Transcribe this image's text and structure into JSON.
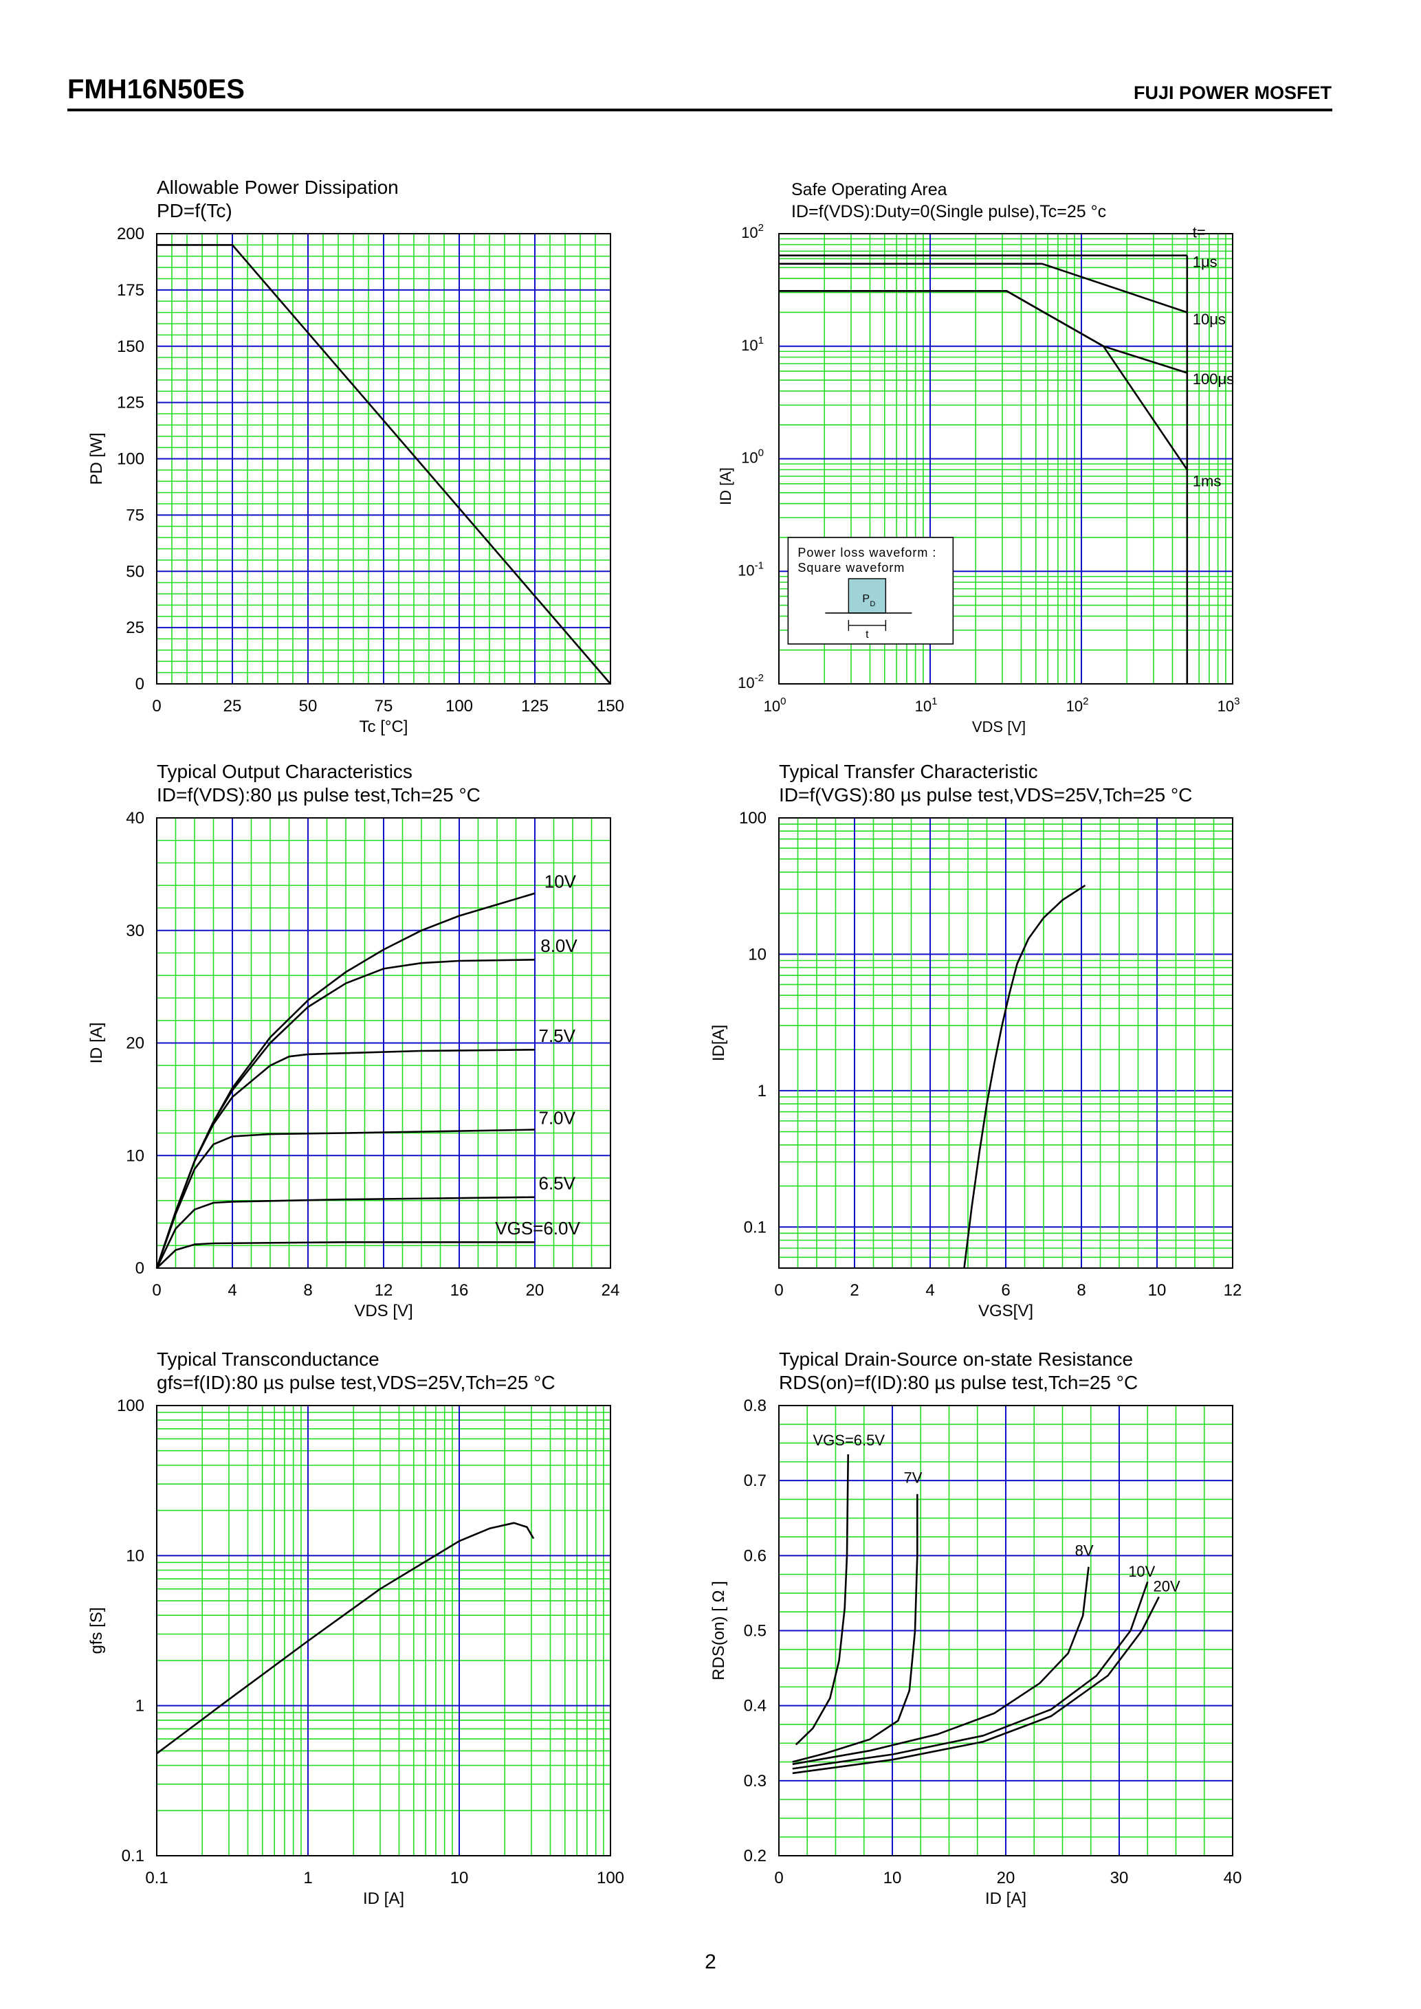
{
  "header": {
    "title": "FMH16N50ES",
    "right": "FUJI POWER MOSFET"
  },
  "page_number": "2",
  "colors": {
    "minor_grid": "#22dd22",
    "major_grid": "#1010c8",
    "curve": "#000000",
    "frame": "#000000"
  },
  "chart_data": [
    {
      "id": "pd",
      "type": "line",
      "title": "Allowable Power Dissipation",
      "subtitle": "PD=f(Tc)",
      "xlabel": "Tc [°C]",
      "ylabel": "PD [W]",
      "xscale": "linear",
      "yscale": "linear",
      "xlim": [
        0,
        150
      ],
      "ylim": [
        0,
        200
      ],
      "xticks": [
        0,
        25,
        50,
        75,
        100,
        125,
        150
      ],
      "xtick_labels": [
        "0",
        "25",
        "50",
        "75",
        "100",
        "125",
        "150"
      ],
      "yticks": [
        0,
        25,
        50,
        75,
        100,
        125,
        150,
        175,
        200
      ],
      "ytick_labels": [
        "0",
        "25",
        "50",
        "75",
        "100",
        "125",
        "150",
        "175",
        "200"
      ],
      "grid": true,
      "series": [
        {
          "points": [
            [
              0,
              195
            ],
            [
              25,
              195
            ],
            [
              150,
              0
            ]
          ]
        }
      ]
    },
    {
      "id": "soa",
      "type": "line",
      "title": "Safe Operating Area",
      "subtitle": "ID=f(VDS):Duty=0(Single pulse),Tc=25 °c",
      "xlabel": "VDS [V]",
      "ylabel": "ID [A]",
      "xscale": "log",
      "yscale": "log",
      "xlim": [
        1,
        1000
      ],
      "ylim": [
        0.01,
        100
      ],
      "xtick_base": [
        "10",
        "10",
        "10",
        "10"
      ],
      "xtick_exp": [
        "0",
        "1",
        "2",
        "3"
      ],
      "ytick_base": [
        "10",
        "10",
        "10",
        "10",
        "10"
      ],
      "ytick_exp": [
        "-2",
        "-1",
        "0",
        "1",
        "2"
      ],
      "grid": true,
      "annotations": [
        "t=",
        "1μs",
        "10μs",
        "100μs",
        "1ms"
      ],
      "inset": {
        "line1": "Power loss waveform :",
        "line2": "Square waveform",
        "pulse_label": "PD",
        "width_label": "t"
      },
      "series": [
        {
          "name": "1μs",
          "points": [
            [
              1,
              64
            ],
            [
              160,
              64
            ],
            [
              500,
              64
            ]
          ]
        },
        {
          "name": "10μs",
          "points": [
            [
              1,
              54
            ],
            [
              55,
              54
            ],
            [
              500,
              20
            ]
          ]
        },
        {
          "name": "100μs",
          "points": [
            [
              1,
              31
            ],
            [
              32,
              31
            ],
            [
              140,
              10
            ],
            [
              500,
              5.8
            ]
          ]
        },
        {
          "name": "1ms",
          "points": [
            [
              1,
              31
            ],
            [
              32,
              31
            ],
            [
              140,
              10
            ],
            [
              500,
              0.8
            ]
          ]
        },
        {
          "name": "VDS limit",
          "points": [
            [
              500,
              0.01
            ],
            [
              500,
              64
            ]
          ]
        }
      ]
    },
    {
      "id": "output",
      "type": "line",
      "title": "Typical Output Characteristics",
      "subtitle": "ID=f(VDS):80 µs pulse test,Tch=25 °C",
      "xlabel": "VDS [V]",
      "ylabel": "ID [A]",
      "xscale": "linear",
      "yscale": "linear",
      "xlim": [
        0,
        24
      ],
      "ylim": [
        0,
        40
      ],
      "xticks": [
        0,
        4,
        8,
        12,
        16,
        20,
        24
      ],
      "xtick_labels": [
        "0",
        "4",
        "8",
        "12",
        "16",
        "20",
        "24"
      ],
      "yticks": [
        0,
        10,
        20,
        30,
        40
      ],
      "ytick_labels": [
        "0",
        "10",
        "20",
        "30",
        "40"
      ],
      "grid": true,
      "series": [
        {
          "name": "10V",
          "points": [
            [
              0,
              0
            ],
            [
              1,
              5
            ],
            [
              2,
              9.5
            ],
            [
              3,
              13
            ],
            [
              4,
              16
            ],
            [
              6,
              20.5
            ],
            [
              8,
              23.8
            ],
            [
              10,
              26.3
            ],
            [
              12,
              28.3
            ],
            [
              14,
              30
            ],
            [
              16,
              31.3
            ],
            [
              18,
              32.3
            ],
            [
              20,
              33.3
            ]
          ]
        },
        {
          "name": "8.0V",
          "points": [
            [
              0,
              0
            ],
            [
              1,
              5
            ],
            [
              2,
              9.5
            ],
            [
              3,
              13
            ],
            [
              4,
              15.8
            ],
            [
              6,
              20
            ],
            [
              8,
              23.2
            ],
            [
              10,
              25.3
            ],
            [
              12,
              26.6
            ],
            [
              14,
              27.1
            ],
            [
              16,
              27.3
            ],
            [
              20,
              27.4
            ]
          ]
        },
        {
          "name": "7.5V",
          "points": [
            [
              0,
              0
            ],
            [
              1,
              5
            ],
            [
              2,
              9.5
            ],
            [
              3,
              12.8
            ],
            [
              4,
              15.2
            ],
            [
              6,
              18
            ],
            [
              7,
              18.8
            ],
            [
              8,
              19
            ],
            [
              10,
              19.1
            ],
            [
              14,
              19.3
            ],
            [
              20,
              19.4
            ]
          ]
        },
        {
          "name": "7.0V",
          "points": [
            [
              0,
              0
            ],
            [
              1,
              4.8
            ],
            [
              2,
              8.8
            ],
            [
              3,
              11
            ],
            [
              4,
              11.7
            ],
            [
              6,
              11.9
            ],
            [
              10,
              12
            ],
            [
              20,
              12.3
            ]
          ]
        },
        {
          "name": "6.5V",
          "points": [
            [
              0,
              0
            ],
            [
              1,
              3.5
            ],
            [
              2,
              5.2
            ],
            [
              3,
              5.8
            ],
            [
              4,
              5.9
            ],
            [
              10,
              6.1
            ],
            [
              20,
              6.3
            ]
          ]
        },
        {
          "name": "VGS=6.0V",
          "points": [
            [
              0,
              0
            ],
            [
              1,
              1.6
            ],
            [
              2,
              2.1
            ],
            [
              3,
              2.2
            ],
            [
              10,
              2.3
            ],
            [
              20,
              2.3
            ]
          ]
        }
      ]
    },
    {
      "id": "transfer",
      "type": "line",
      "title": "Typical Transfer Characteristic",
      "subtitle": "ID=f(VGS):80 µs pulse test,VDS=25V,Tch=25 °C",
      "xlabel": "VGS[V]",
      "ylabel": "ID[A]",
      "xscale": "linear",
      "yscale": "log",
      "xlim": [
        0,
        12
      ],
      "ylim": [
        0.05,
        100
      ],
      "xticks": [
        0,
        2,
        4,
        6,
        8,
        10,
        12
      ],
      "xtick_labels": [
        "0",
        "2",
        "4",
        "6",
        "8",
        "10",
        "12"
      ],
      "yticks": [
        0.1,
        1,
        10,
        100
      ],
      "ytick_labels": [
        "0.1",
        "1",
        "10",
        "100"
      ],
      "grid": true,
      "series": [
        {
          "points": [
            [
              4.9,
              0.05
            ],
            [
              5.1,
              0.14
            ],
            [
              5.3,
              0.35
            ],
            [
              5.5,
              0.8
            ],
            [
              5.7,
              1.6
            ],
            [
              5.9,
              3
            ],
            [
              6.1,
              5.2
            ],
            [
              6.3,
              8.5
            ],
            [
              6.6,
              13
            ],
            [
              7.0,
              18.5
            ],
            [
              7.5,
              25
            ],
            [
              8.1,
              32
            ]
          ]
        }
      ]
    },
    {
      "id": "gfs",
      "type": "line",
      "title": "Typical Transconductance",
      "subtitle": "gfs=f(ID):80 µs pulse test,VDS=25V,Tch=25 °C",
      "xlabel": "ID [A]",
      "ylabel": "gfs [S]",
      "xscale": "log",
      "yscale": "log",
      "xlim": [
        0.1,
        100
      ],
      "ylim": [
        0.1,
        100
      ],
      "xticks": [
        0.1,
        1,
        10,
        100
      ],
      "xtick_labels": [
        "0.1",
        "1",
        "10",
        "100"
      ],
      "yticks": [
        0.1,
        1,
        10,
        100
      ],
      "ytick_labels": [
        "0.1",
        "1",
        "10",
        "100"
      ],
      "grid": true,
      "series": [
        {
          "points": [
            [
              0.1,
              0.48
            ],
            [
              0.3,
              1.1
            ],
            [
              1,
              2.7
            ],
            [
              3,
              6
            ],
            [
              10,
              12.5
            ],
            [
              16,
              15.2
            ],
            [
              23,
              16.5
            ],
            [
              28,
              15.5
            ],
            [
              31,
              13
            ]
          ]
        }
      ]
    },
    {
      "id": "rds",
      "type": "line",
      "title": "Typical Drain-Source on-state Resistance",
      "subtitle": "RDS(on)=f(ID):80 µs pulse test,Tch=25 °C",
      "xlabel": "ID [A]",
      "ylabel": "RDS(on) [ Ω ]",
      "xscale": "linear",
      "yscale": "linear",
      "xlim": [
        0,
        40
      ],
      "ylim": [
        0.2,
        0.8
      ],
      "xticks": [
        0,
        10,
        20,
        30,
        40
      ],
      "xtick_labels": [
        "0",
        "10",
        "20",
        "30",
        "40"
      ],
      "yticks": [
        0.2,
        0.3,
        0.4,
        0.5,
        0.6,
        0.7,
        0.8
      ],
      "ytick_labels": [
        "0.2",
        "0.3",
        "0.4",
        "0.5",
        "0.6",
        "0.7",
        "0.8"
      ],
      "grid": true,
      "series": [
        {
          "name": "VGS=6.5V",
          "points": [
            [
              1.5,
              0.348
            ],
            [
              3,
              0.37
            ],
            [
              4.5,
              0.41
            ],
            [
              5.3,
              0.46
            ],
            [
              5.8,
              0.53
            ],
            [
              6,
              0.6
            ],
            [
              6.1,
              0.735
            ]
          ]
        },
        {
          "name": "7V",
          "points": [
            [
              1.2,
              0.325
            ],
            [
              4,
              0.336
            ],
            [
              8,
              0.355
            ],
            [
              10.5,
              0.38
            ],
            [
              11.5,
              0.42
            ],
            [
              12,
              0.5
            ],
            [
              12.2,
              0.6
            ],
            [
              12.2,
              0.682
            ]
          ]
        },
        {
          "name": "8V",
          "points": [
            [
              1.2,
              0.322
            ],
            [
              8,
              0.34
            ],
            [
              14,
              0.362
            ],
            [
              19,
              0.39
            ],
            [
              23,
              0.43
            ],
            [
              25.5,
              0.47
            ],
            [
              26.8,
              0.52
            ],
            [
              27.3,
              0.585
            ]
          ]
        },
        {
          "name": "10V",
          "points": [
            [
              1.2,
              0.316
            ],
            [
              10,
              0.335
            ],
            [
              18,
              0.36
            ],
            [
              24,
              0.395
            ],
            [
              28,
              0.44
            ],
            [
              31,
              0.5
            ],
            [
              32.5,
              0.565
            ]
          ]
        },
        {
          "name": "20V",
          "points": [
            [
              1.2,
              0.31
            ],
            [
              10,
              0.328
            ],
            [
              18,
              0.352
            ],
            [
              24,
              0.386
            ],
            [
              29,
              0.44
            ],
            [
              32,
              0.5
            ],
            [
              33.5,
              0.545
            ]
          ]
        }
      ],
      "series_labels": [
        "VGS=6.5V",
        "7V",
        "8V",
        "10V",
        "20V"
      ]
    }
  ]
}
